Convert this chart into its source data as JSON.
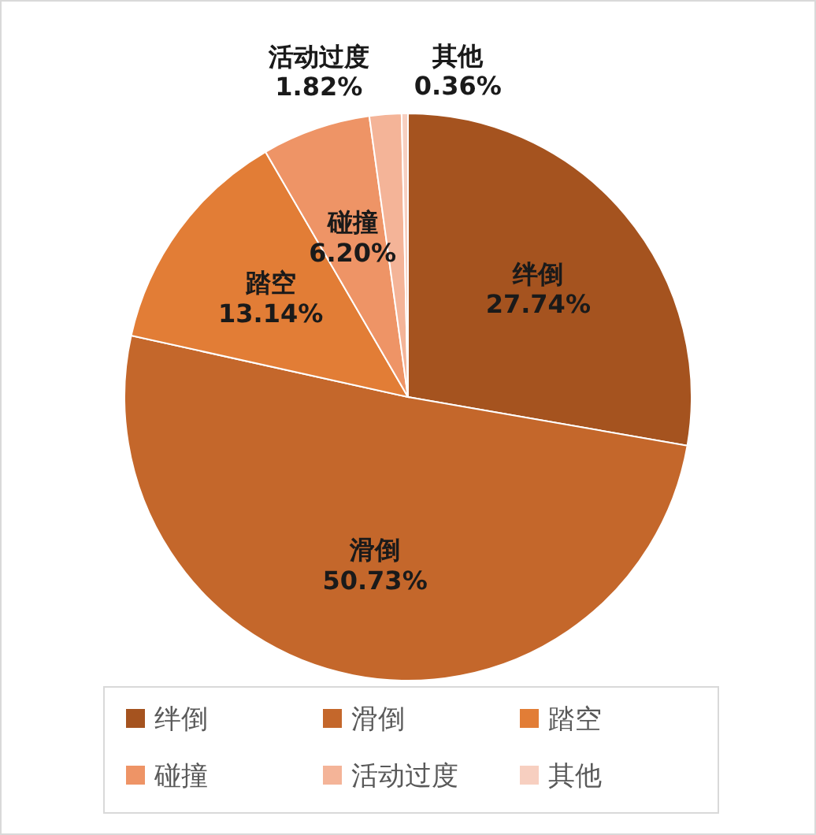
{
  "chart_data": {
    "type": "pie",
    "categories": [
      "绊倒",
      "滑倒",
      "踏空",
      "碰撞",
      "活动过度",
      "其他"
    ],
    "values": [
      27.74,
      50.73,
      13.14,
      6.2,
      1.82,
      0.36
    ],
    "value_labels": [
      "27.74%",
      "50.73%",
      "13.14%",
      "6.20%",
      "1.82%",
      "0.36%"
    ],
    "colors": [
      "#a5531f",
      "#c4672b",
      "#e27d36",
      "#ee9466",
      "#f4b498",
      "#f7cfc0"
    ],
    "legend": "bottom"
  }
}
